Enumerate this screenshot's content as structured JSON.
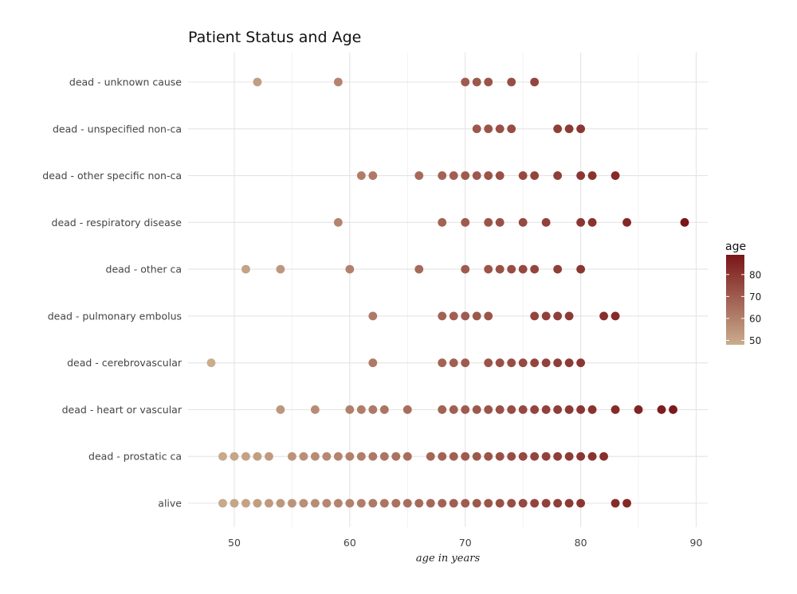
{
  "chart_data": {
    "type": "scatter",
    "title": "Patient Status and Age",
    "xlabel": "age in years",
    "ylabel": "",
    "xlim": [
      46,
      91
    ],
    "x_ticks": [
      50,
      60,
      70,
      80,
      90
    ],
    "grid": true,
    "categories": [
      "alive",
      "dead - prostatic ca",
      "dead - heart or vascular",
      "dead - cerebrovascular",
      "dead - pulmonary embolus",
      "dead - other ca",
      "dead - respiratory disease",
      "dead - other specific non-ca",
      "dead - unspecified non-ca",
      "dead - unknown cause"
    ],
    "points": {
      "alive": [
        49,
        50,
        51,
        52,
        53,
        54,
        55,
        56,
        57,
        58,
        59,
        60,
        61,
        62,
        63,
        64,
        65,
        66,
        67,
        68,
        69,
        70,
        71,
        72,
        73,
        74,
        75,
        76,
        77,
        78,
        79,
        80,
        83,
        84
      ],
      "dead - prostatic ca": [
        49,
        50,
        51,
        52,
        53,
        55,
        56,
        57,
        58,
        59,
        60,
        61,
        62,
        63,
        64,
        65,
        67,
        68,
        69,
        70,
        71,
        72,
        73,
        74,
        75,
        76,
        77,
        78,
        79,
        80,
        81,
        82
      ],
      "dead - heart or vascular": [
        54,
        57,
        60,
        61,
        62,
        63,
        65,
        68,
        69,
        70,
        71,
        72,
        73,
        74,
        75,
        76,
        77,
        78,
        79,
        80,
        81,
        83,
        85,
        87,
        88
      ],
      "dead - cerebrovascular": [
        48,
        62,
        68,
        69,
        70,
        72,
        73,
        74,
        75,
        76,
        77,
        78,
        79,
        80
      ],
      "dead - pulmonary embolus": [
        62,
        68,
        69,
        70,
        71,
        72,
        76,
        77,
        78,
        79,
        82,
        83
      ],
      "dead - other ca": [
        51,
        54,
        60,
        66,
        70,
        72,
        73,
        74,
        75,
        76,
        78,
        80
      ],
      "dead - respiratory disease": [
        59,
        68,
        70,
        72,
        73,
        75,
        77,
        80,
        81,
        84,
        89
      ],
      "dead - other specific non-ca": [
        61,
        62,
        66,
        68,
        69,
        70,
        71,
        72,
        73,
        75,
        76,
        78,
        80,
        81,
        83
      ],
      "dead - unspecified non-ca": [
        71,
        72,
        73,
        74,
        78,
        79,
        80
      ],
      "dead - unknown cause": [
        52,
        59,
        70,
        71,
        72,
        74,
        76
      ]
    },
    "color_scale": {
      "name": "age",
      "min": 48,
      "max": 89,
      "low_color": "#c9ad8e",
      "high_color": "#7a1518",
      "ticks": [
        50,
        60,
        70,
        80
      ]
    },
    "legend_position": "right"
  }
}
